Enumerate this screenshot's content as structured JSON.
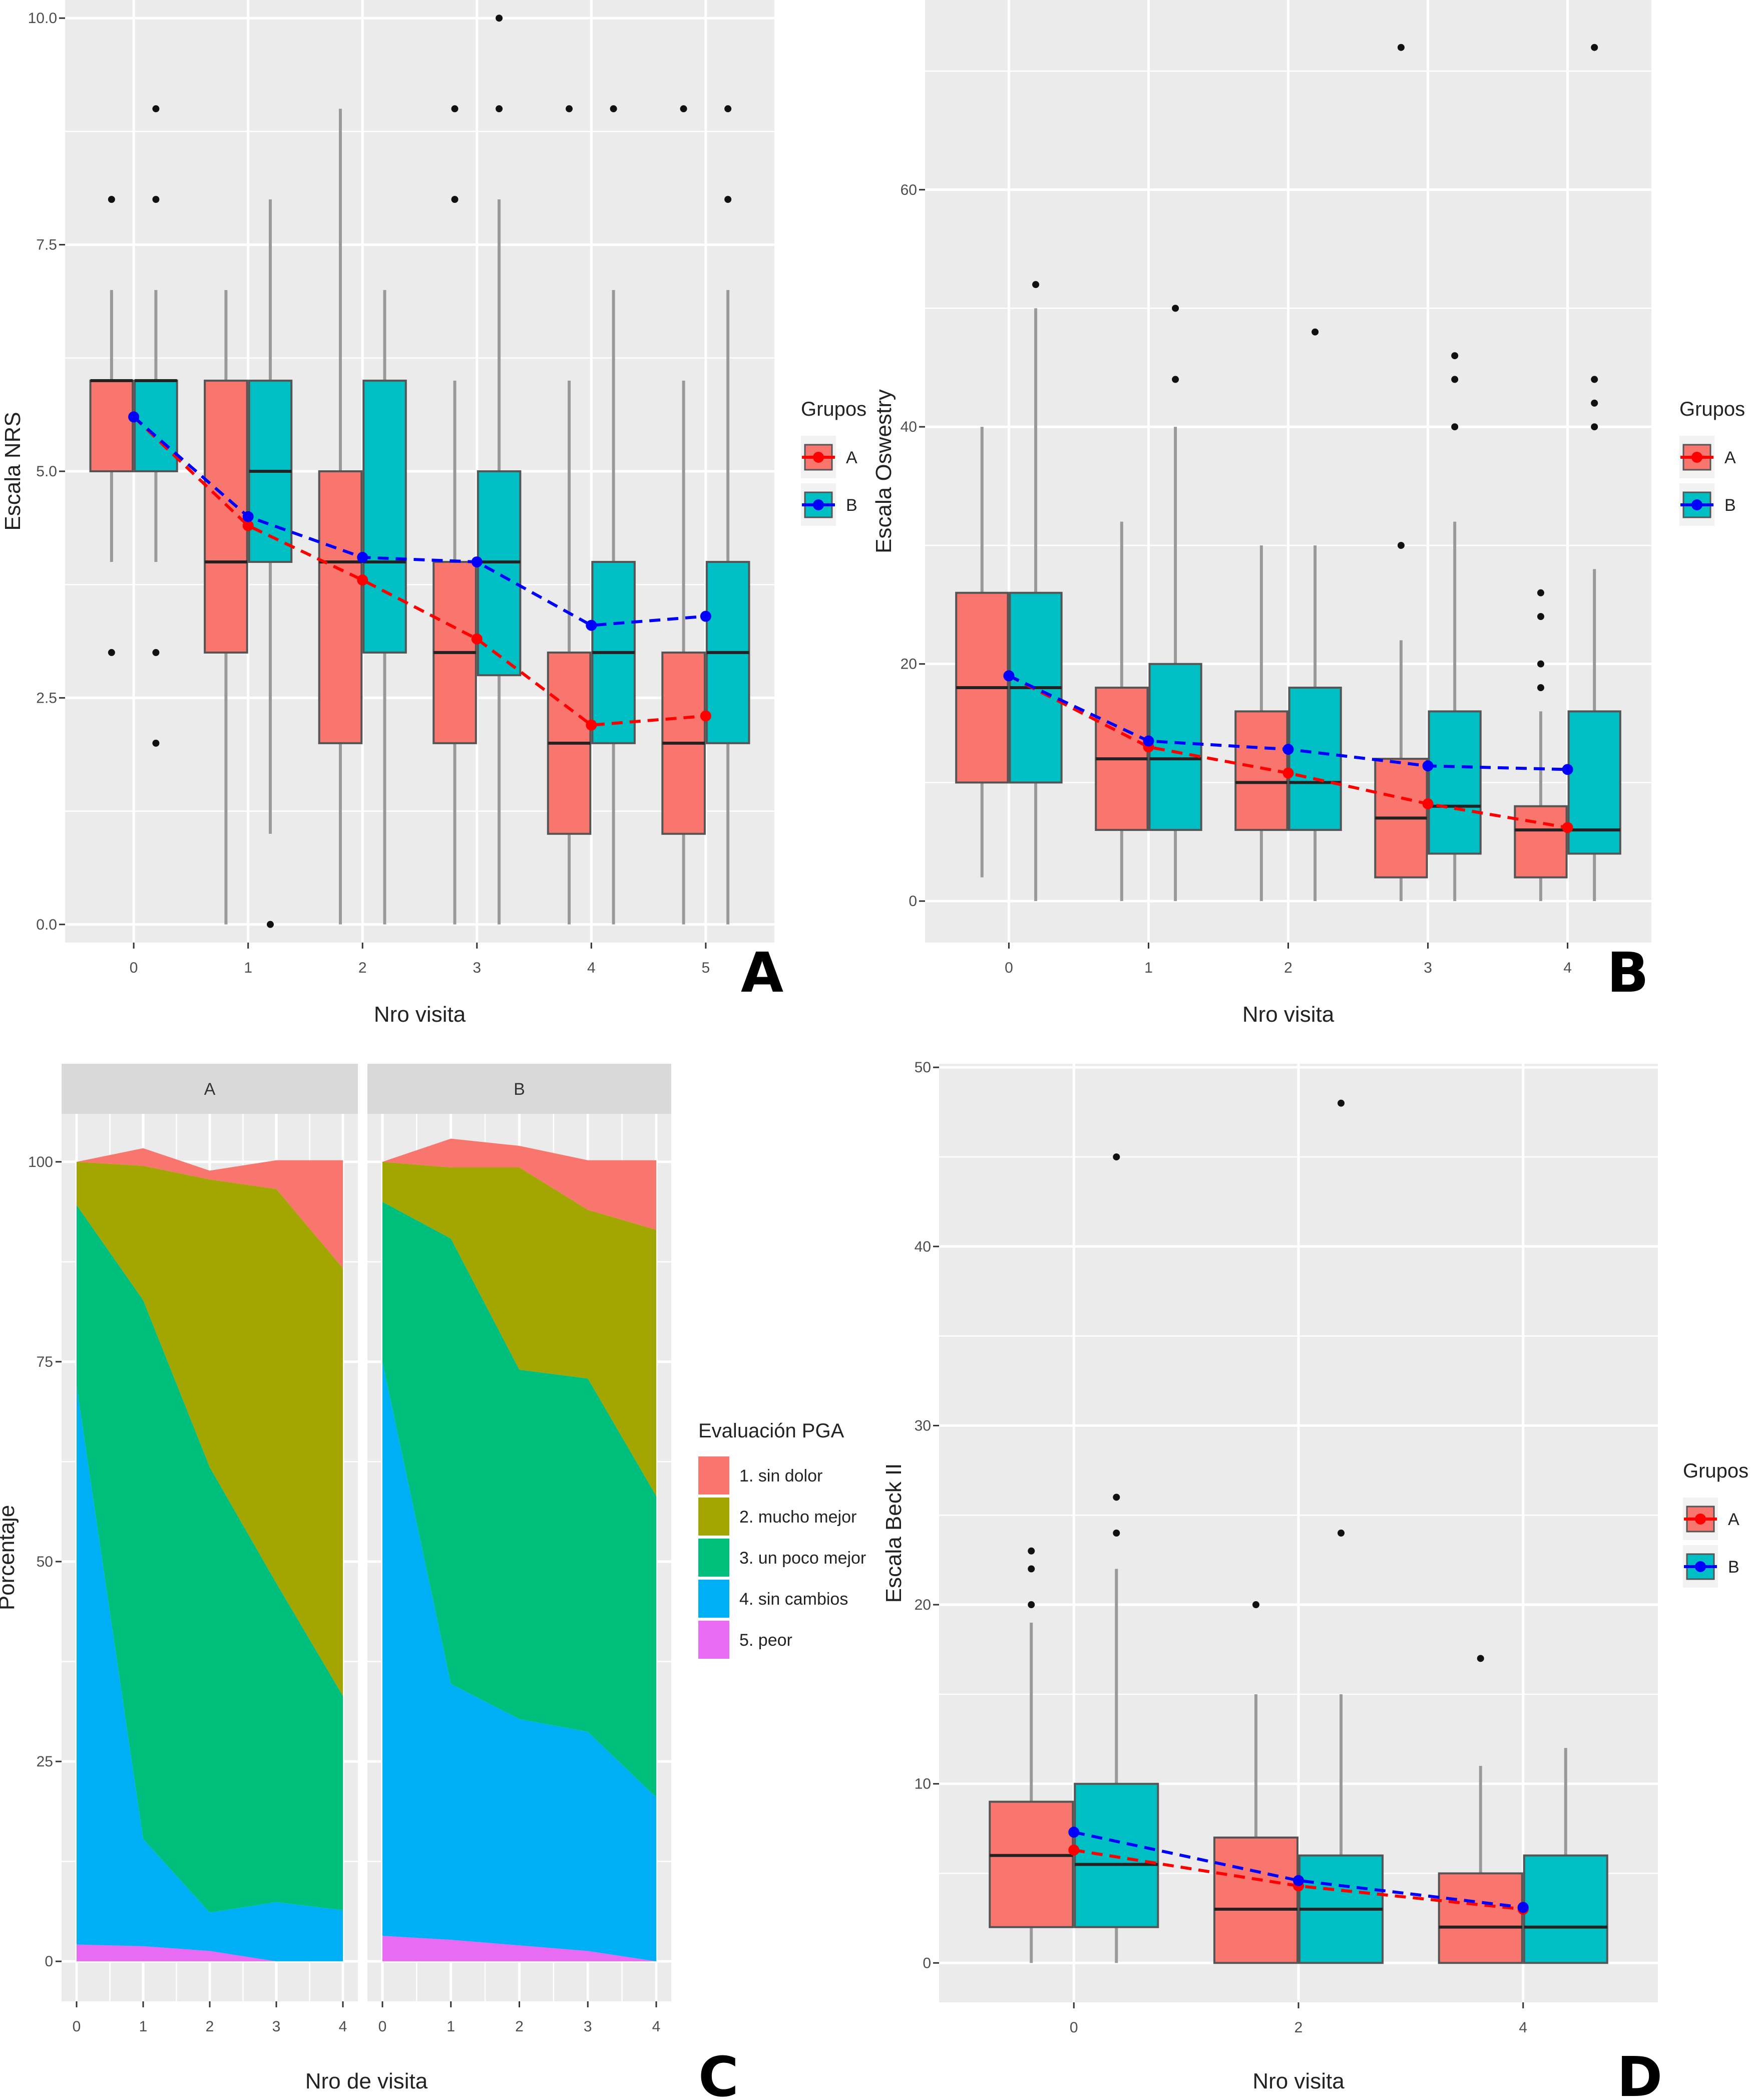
{
  "colors": {
    "group_A_fill": "#F8766D",
    "group_B_fill": "#00BFC4",
    "group_A_line": "#FF0000",
    "group_B_line": "#0000FF",
    "panel_bg": "#EBEBEB",
    "grid": "#FFFFFF",
    "strip_bg": "#D9D9D9",
    "pga_1": "#F8766D",
    "pga_2": "#A3A500",
    "pga_3": "#00BF7D",
    "pga_4": "#00B0F6",
    "pga_5": "#E76BF3"
  },
  "chart_data": [
    {
      "panel": "A",
      "type": "box",
      "title": "",
      "xlabel": "Nro visita",
      "ylabel": "Escala NRS",
      "categories": [
        "0",
        "1",
        "2",
        "3",
        "4",
        "5"
      ],
      "ylim": [
        -0.2,
        10.2
      ],
      "yticks": [
        0.0,
        2.5,
        5.0,
        7.5,
        10.0
      ],
      "ytick_labels": [
        "0.0",
        "2.5",
        "5.0",
        "7.5",
        "10.0"
      ],
      "grid": true,
      "legend": {
        "title": "Grupos",
        "entries": [
          "A",
          "B"
        ],
        "position": "right"
      },
      "series": [
        {
          "name": "A",
          "boxes": [
            {
              "whisker_low": 4,
              "q1": 5,
              "median": 6,
              "q3": 6,
              "whisker_high": 7,
              "outliers": [
                3,
                8
              ]
            },
            {
              "whisker_low": 0,
              "q1": 3,
              "median": 4,
              "q3": 6,
              "whisker_high": 7,
              "outliers": []
            },
            {
              "whisker_low": 0,
              "q1": 2,
              "median": 4,
              "q3": 5,
              "whisker_high": 9,
              "outliers": []
            },
            {
              "whisker_low": 0,
              "q1": 2,
              "median": 3,
              "q3": 4,
              "whisker_high": 6,
              "outliers": [
                8,
                9
              ]
            },
            {
              "whisker_low": 0,
              "q1": 1,
              "median": 2,
              "q3": 3,
              "whisker_high": 6,
              "outliers": [
                9
              ]
            },
            {
              "whisker_low": 0,
              "q1": 1,
              "median": 2,
              "q3": 3,
              "whisker_high": 6,
              "outliers": [
                9
              ]
            }
          ],
          "means": [
            5.6,
            4.4,
            3.8,
            3.15,
            2.2,
            2.3
          ]
        },
        {
          "name": "B",
          "boxes": [
            {
              "whisker_low": 4,
              "q1": 5,
              "median": 6,
              "q3": 6,
              "whisker_high": 7,
              "outliers": [
                2,
                3,
                8,
                9
              ]
            },
            {
              "whisker_low": 1,
              "q1": 4,
              "median": 5,
              "q3": 6,
              "whisker_high": 8,
              "outliers": [
                0
              ]
            },
            {
              "whisker_low": 0,
              "q1": 3,
              "median": 4,
              "q3": 6,
              "whisker_high": 7,
              "outliers": []
            },
            {
              "whisker_low": 0,
              "q1": 2.75,
              "median": 4,
              "q3": 5,
              "whisker_high": 8,
              "outliers": [
                9,
                10
              ]
            },
            {
              "whisker_low": 0,
              "q1": 2,
              "median": 3,
              "q3": 4,
              "whisker_high": 7,
              "outliers": [
                9
              ]
            },
            {
              "whisker_low": 0,
              "q1": 2,
              "median": 3,
              "q3": 4,
              "whisker_high": 7,
              "outliers": [
                8,
                9
              ]
            }
          ],
          "means": [
            5.6,
            4.5,
            4.05,
            4.0,
            3.3,
            3.4
          ]
        }
      ]
    },
    {
      "panel": "B",
      "type": "box",
      "title": "",
      "xlabel": "Nro visita",
      "ylabel": "Escala Oswestry",
      "categories": [
        "0",
        "1",
        "2",
        "3",
        "4"
      ],
      "ylim": [
        -3.5,
        76
      ],
      "yticks": [
        0,
        20,
        40,
        60
      ],
      "ytick_labels": [
        "0",
        "20",
        "40",
        "60"
      ],
      "grid": true,
      "legend": {
        "title": "Grupos",
        "entries": [
          "A",
          "B"
        ],
        "position": "right"
      },
      "series": [
        {
          "name": "A",
          "boxes": [
            {
              "whisker_low": 2,
              "q1": 10,
              "median": 18,
              "q3": 26,
              "whisker_high": 40,
              "outliers": []
            },
            {
              "whisker_low": 0,
              "q1": 6,
              "median": 12,
              "q3": 18,
              "whisker_high": 32,
              "outliers": []
            },
            {
              "whisker_low": 0,
              "q1": 6,
              "median": 10,
              "q3": 16,
              "whisker_high": 30,
              "outliers": []
            },
            {
              "whisker_low": 0,
              "q1": 2,
              "median": 7,
              "q3": 12,
              "whisker_high": 22,
              "outliers": [
                30,
                72
              ]
            },
            {
              "whisker_low": 0,
              "q1": 2,
              "median": 6,
              "q3": 8,
              "whisker_high": 16,
              "outliers": [
                18,
                20,
                24,
                26
              ]
            }
          ],
          "means": [
            19,
            13,
            10.8,
            8.2,
            6.2
          ]
        },
        {
          "name": "B",
          "boxes": [
            {
              "whisker_low": 0,
              "q1": 10,
              "median": 18,
              "q3": 26,
              "whisker_high": 50,
              "outliers": [
                52
              ]
            },
            {
              "whisker_low": 0,
              "q1": 6,
              "median": 12,
              "q3": 20,
              "whisker_high": 40,
              "outliers": [
                44,
                50
              ]
            },
            {
              "whisker_low": 0,
              "q1": 6,
              "median": 10,
              "q3": 18,
              "whisker_high": 30,
              "outliers": [
                48
              ]
            },
            {
              "whisker_low": 0,
              "q1": 4,
              "median": 8,
              "q3": 16,
              "whisker_high": 32,
              "outliers": [
                40,
                44,
                46
              ]
            },
            {
              "whisker_low": 0,
              "q1": 4,
              "median": 6,
              "q3": 16,
              "whisker_high": 28,
              "outliers": [
                40,
                42,
                44,
                72
              ]
            }
          ],
          "means": [
            19,
            13.5,
            12.8,
            11.4,
            11.1
          ]
        }
      ]
    },
    {
      "panel": "C",
      "type": "area",
      "title": "",
      "xlabel": "Nro de visita",
      "ylabel": "Porcentaje",
      "facets": [
        "A",
        "B"
      ],
      "x": [
        0,
        1,
        2,
        3,
        4
      ],
      "xtick_labels": [
        "0",
        "1",
        "2",
        "3",
        "4"
      ],
      "ylim": [
        -5,
        106
      ],
      "yticks": [
        0,
        25,
        50,
        75,
        100
      ],
      "ytick_labels": [
        "0",
        "25",
        "50",
        "75",
        "100"
      ],
      "grid": true,
      "legend": {
        "title": "Evaluación PGA",
        "entries": [
          "1. sin dolor",
          "2. mucho mejor",
          "3. un poco mejor",
          "4. sin cambios",
          "5. peor"
        ],
        "position": "right"
      },
      "series_cumulative_top": {
        "A": {
          "5. peor": [
            2.1,
            1.9,
            1.3,
            0,
            0
          ],
          "4. sin cambios": [
            72,
            15.3,
            6.1,
            7.4,
            6.4
          ],
          "3. un poco mejor": [
            94.6,
            82.7,
            61.8,
            47.3,
            33.2
          ],
          "2. mucho mejor": [
            100,
            99.5,
            97.8,
            96.6,
            86.7
          ],
          "1. sin dolor": [
            100,
            101.7,
            98.9,
            100.2,
            100.2
          ]
        },
        "B": {
          "5. peor": [
            3.2,
            2.7,
            2.0,
            1.3,
            0
          ],
          "4. sin cambios": [
            75,
            34.7,
            30.3,
            28.7,
            20.5
          ],
          "3. un poco mejor": [
            95,
            90.4,
            74,
            72.9,
            58.2
          ],
          "2. mucho mejor": [
            100,
            99.3,
            99.3,
            94,
            91.5
          ],
          "1. sin dolor": [
            100,
            102.9,
            102.0,
            100.2,
            100.2
          ]
        }
      }
    },
    {
      "panel": "D",
      "type": "box",
      "title": "",
      "xlabel": "Nro visita",
      "ylabel": "Escala Beck II",
      "categories": [
        "0",
        "2",
        "4"
      ],
      "ylim": [
        -2.2,
        50.2
      ],
      "yticks": [
        0,
        10,
        20,
        30,
        40,
        50
      ],
      "ytick_labels": [
        "0",
        "10",
        "20",
        "30",
        "40",
        "50"
      ],
      "grid": true,
      "legend": {
        "title": "Grupos",
        "entries": [
          "A",
          "B"
        ],
        "position": "right"
      },
      "series": [
        {
          "name": "A",
          "boxes": [
            {
              "whisker_low": 0,
              "q1": 2,
              "median": 6,
              "q3": 9,
              "whisker_high": 19,
              "outliers": [
                20,
                22,
                23
              ]
            },
            {
              "whisker_low": 0,
              "q1": 0,
              "median": 3,
              "q3": 7,
              "whisker_high": 15,
              "outliers": [
                20
              ]
            },
            {
              "whisker_low": 0,
              "q1": 0,
              "median": 2,
              "q3": 5,
              "whisker_high": 11,
              "outliers": [
                17
              ]
            }
          ],
          "means": [
            6.3,
            4.3,
            3.0
          ]
        },
        {
          "name": "B",
          "boxes": [
            {
              "whisker_low": 0,
              "q1": 2,
              "median": 5.5,
              "q3": 10,
              "whisker_high": 22,
              "outliers": [
                24,
                26,
                45
              ]
            },
            {
              "whisker_low": 0,
              "q1": 0,
              "median": 3,
              "q3": 6,
              "whisker_high": 15,
              "outliers": [
                24,
                48
              ]
            },
            {
              "whisker_low": 0,
              "q1": 0,
              "median": 2,
              "q3": 6,
              "whisker_high": 12,
              "outliers": []
            }
          ],
          "means": [
            7.3,
            4.6,
            3.1
          ]
        }
      ]
    }
  ]
}
